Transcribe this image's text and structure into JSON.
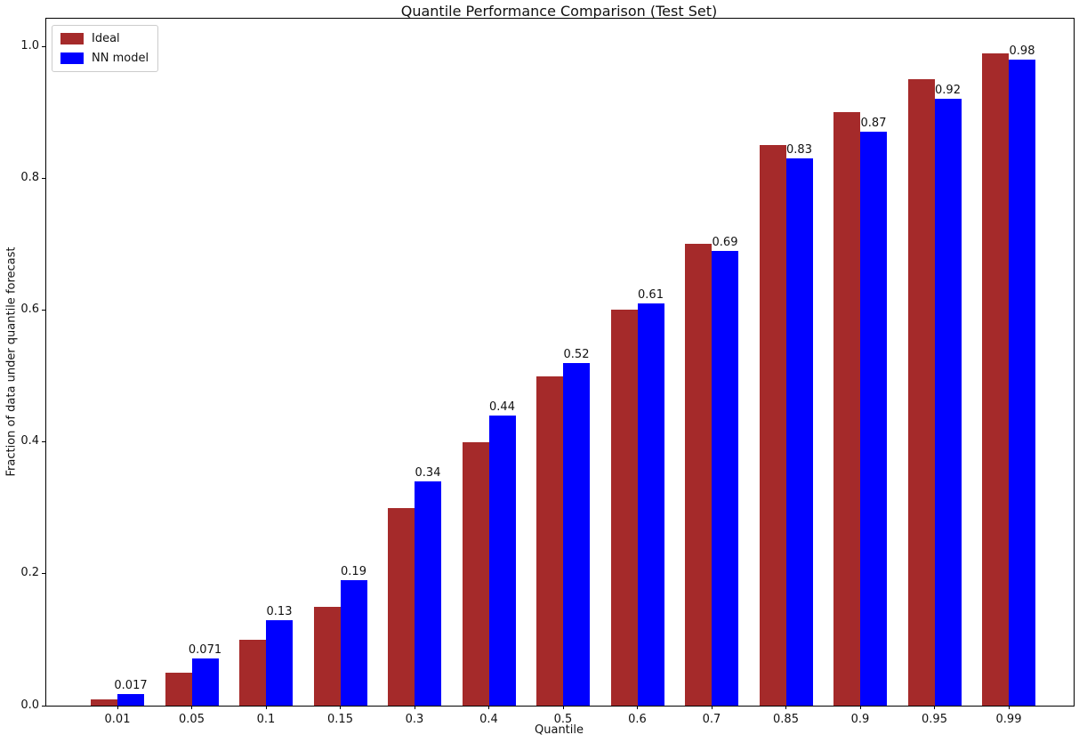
{
  "chart_data": {
    "type": "bar",
    "title": "Quantile Performance Comparison (Test Set)",
    "xlabel": "Quantile",
    "ylabel": "Fraction of data under quantile forecast",
    "categories": [
      "0.01",
      "0.05",
      "0.1",
      "0.15",
      "0.3",
      "0.4",
      "0.5",
      "0.6",
      "0.7",
      "0.85",
      "0.9",
      "0.95",
      "0.99"
    ],
    "series": [
      {
        "name": "Ideal",
        "color": "#a52a2a",
        "values": [
          0.01,
          0.05,
          0.1,
          0.15,
          0.3,
          0.4,
          0.5,
          0.6,
          0.7,
          0.85,
          0.9,
          0.95,
          0.99
        ]
      },
      {
        "name": "NN model",
        "color": "#0000ff",
        "values": [
          0.017,
          0.071,
          0.13,
          0.19,
          0.34,
          0.44,
          0.52,
          0.61,
          0.69,
          0.83,
          0.87,
          0.92,
          0.98
        ]
      }
    ],
    "bar_labels": [
      "0.017",
      "0.071",
      "0.13",
      "0.19",
      "0.34",
      "0.44",
      "0.52",
      "0.61",
      "0.69",
      "0.83",
      "0.87",
      "0.92",
      "0.98"
    ],
    "yticks": [
      0.0,
      0.2,
      0.4,
      0.6,
      0.8,
      1.0
    ],
    "ytick_labels": [
      "0.0",
      "0.2",
      "0.4",
      "0.6",
      "0.8",
      "1.0"
    ],
    "ylim": [
      0,
      1.042
    ],
    "grid": false,
    "legend_position": "upper left"
  }
}
